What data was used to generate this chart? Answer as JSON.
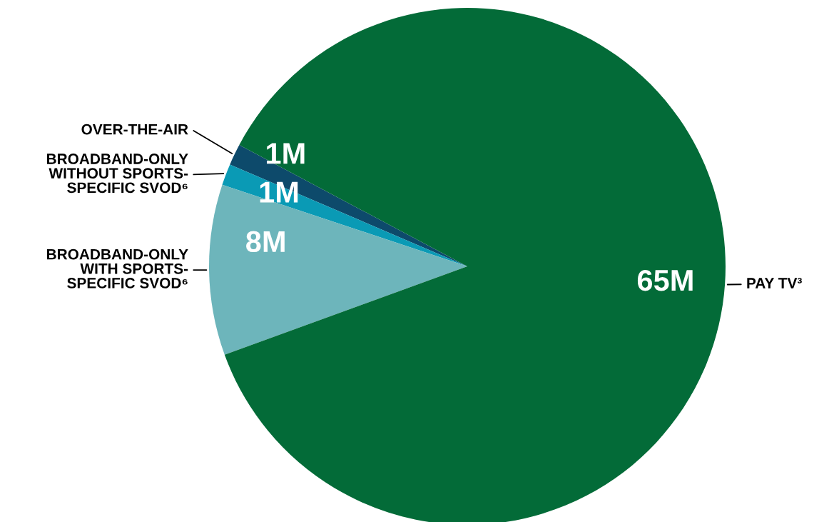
{
  "chart_data": {
    "type": "pie",
    "categories": [
      "OVER-THE-AIR",
      "BROADBAND-ONLY\nWITHOUT SPORTS-\nSPECIFIC SVOD⁶",
      "BROADBAND-ONLY\nWITH SPORTS-\nSPECIFIC SVOD⁶",
      "PAY TV³"
    ],
    "values": [
      1,
      1,
      8,
      65
    ],
    "value_labels": [
      "1M",
      "1M",
      "8M",
      "65M"
    ],
    "colors": [
      "#0d4a6b",
      "#0a9ab5",
      "#6db5bb",
      "#036b38"
    ]
  }
}
